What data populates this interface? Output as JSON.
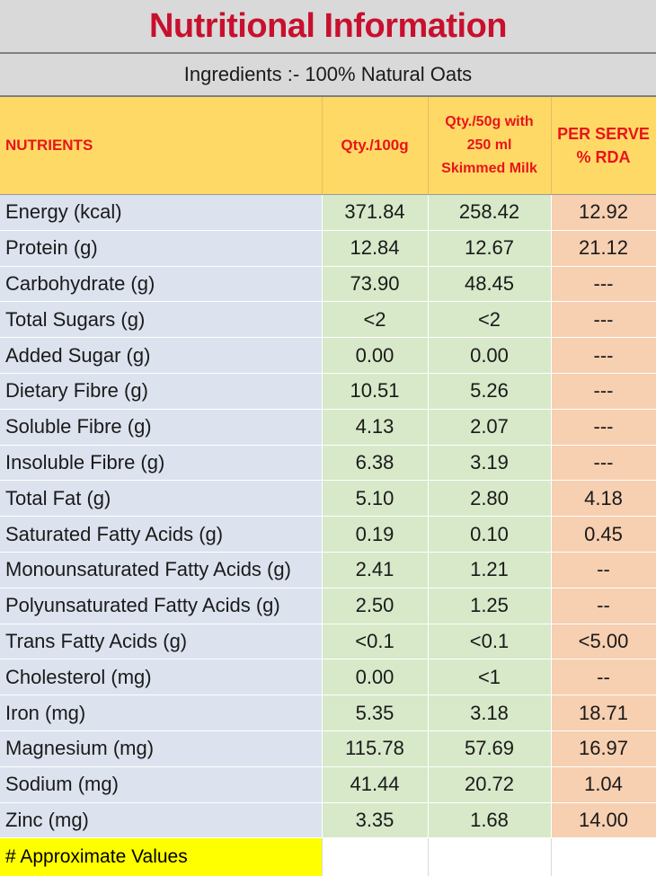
{
  "title": "Nutritional Information",
  "subtitle": "Ingredients :- 100% Natural Oats",
  "headers": {
    "nutrients": "NUTRIENTS",
    "qty_100g": "Qty./100g",
    "qty_serve_line1": "Qty./50g with",
    "qty_serve_line2": "250 ml",
    "qty_serve_line3": "Skimmed Milk",
    "rda_line1": "PER SERVE",
    "rda_line2": "% RDA"
  },
  "rows": [
    {
      "name": "Energy (kcal)",
      "qty_100g": "371.84",
      "qty_serve": "258.42",
      "rda": "12.92"
    },
    {
      "name": "Protein (g)",
      "qty_100g": "12.84",
      "qty_serve": "12.67",
      "rda": "21.12"
    },
    {
      "name": "Carbohydrate (g)",
      "qty_100g": "73.90",
      "qty_serve": "48.45",
      "rda": "---"
    },
    {
      "name": "Total Sugars (g)",
      "qty_100g": "<2",
      "qty_serve": "<2",
      "rda": "---"
    },
    {
      "name": "Added Sugar (g)",
      "qty_100g": "0.00",
      "qty_serve": "0.00",
      "rda": "---"
    },
    {
      "name": "Dietary Fibre (g)",
      "qty_100g": "10.51",
      "qty_serve": "5.26",
      "rda": "---"
    },
    {
      "name": "Soluble Fibre (g)",
      "qty_100g": "4.13",
      "qty_serve": "2.07",
      "rda": "---"
    },
    {
      "name": "Insoluble Fibre (g)",
      "qty_100g": "6.38",
      "qty_serve": "3.19",
      "rda": "---"
    },
    {
      "name": "Total Fat (g)",
      "qty_100g": "5.10",
      "qty_serve": "2.80",
      "rda": "4.18"
    },
    {
      "name": "Saturated Fatty Acids (g)",
      "qty_100g": "0.19",
      "qty_serve": "0.10",
      "rda": "0.45"
    },
    {
      "name": "Monounsaturated Fatty Acids (g)",
      "qty_100g": "2.41",
      "qty_serve": "1.21",
      "rda": "--"
    },
    {
      "name": "Polyunsaturated Fatty Acids (g)",
      "qty_100g": "2.50",
      "qty_serve": "1.25",
      "rda": "--"
    },
    {
      "name": "Trans Fatty Acids (g)",
      "qty_100g": "<0.1",
      "qty_serve": "<0.1",
      "rda": "<5.00"
    },
    {
      "name": "Cholesterol (mg)",
      "qty_100g": "0.00",
      "qty_serve": "<1",
      "rda": "--"
    },
    {
      "name": "Iron (mg)",
      "qty_100g": "5.35",
      "qty_serve": "3.18",
      "rda": "18.71"
    },
    {
      "name": "Magnesium (mg)",
      "qty_100g": "115.78",
      "qty_serve": "57.69",
      "rda": "16.97"
    },
    {
      "name": "Sodium (mg)",
      "qty_100g": "41.44",
      "qty_serve": "20.72",
      "rda": "1.04"
    },
    {
      "name": "Zinc (mg)",
      "qty_100g": "3.35",
      "qty_serve": "1.68",
      "rda": "14.00"
    }
  ],
  "footnote": "# Approximate Values",
  "colors": {
    "title_text": "#c8102e",
    "header_bg": "#ffd966",
    "header_text": "#e8141b",
    "name_bg": "#dce2ee",
    "qty_bg": "#d7e9c9",
    "rda_bg": "#f7cfb1",
    "footnote_bg": "#ffff00"
  }
}
